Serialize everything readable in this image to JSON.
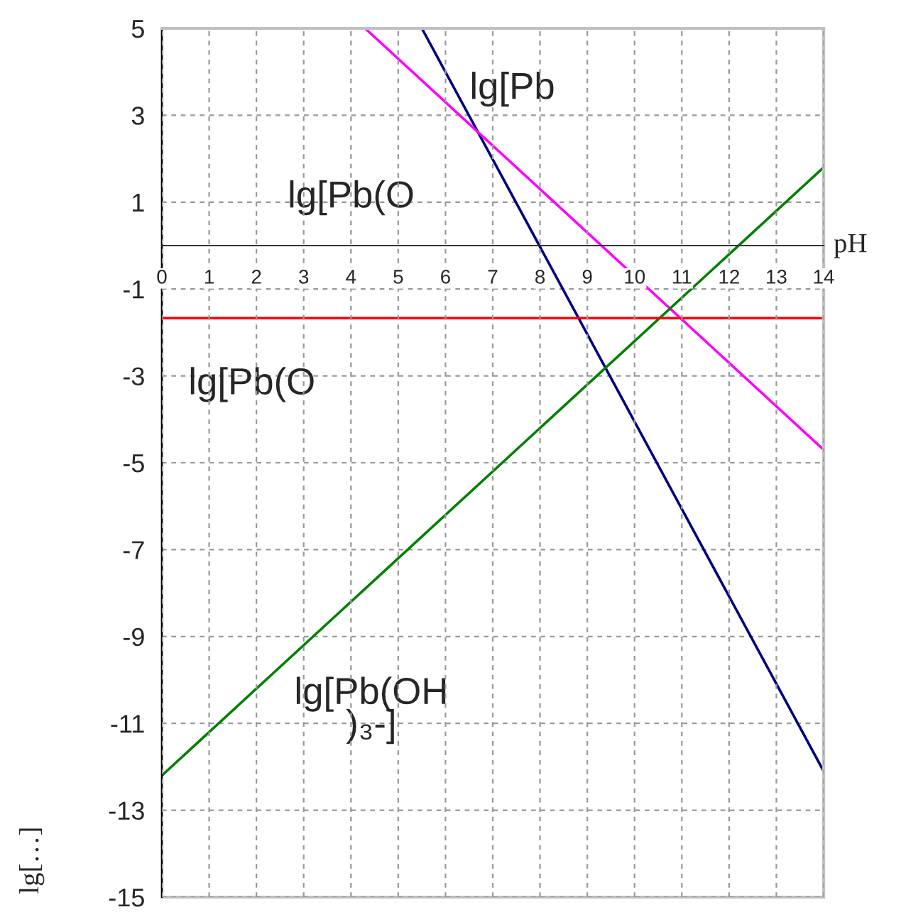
{
  "chart_data": {
    "type": "line",
    "xlabel": "pH",
    "ylabel": "lg[…]",
    "series": [
      {
        "color": "#000080",
        "x": [
          5.5,
          14
        ],
        "values": [
          5,
          -12.1
        ]
      },
      {
        "color": "#ff00ff",
        "x": [
          4.3,
          14
        ],
        "values": [
          5,
          -4.7
        ]
      },
      {
        "color": "#008000",
        "x": [
          0,
          14
        ],
        "values": [
          -12.2,
          1.8
        ]
      },
      {
        "color": "#ff0000",
        "x": [
          0,
          14
        ],
        "values": [
          -1.67,
          -1.67
        ]
      }
    ],
    "annotations": [
      "lg[Pb",
      "lg[Pb(O",
      "lg[Pb(O",
      "lg[Pb(OH\n)₃-]"
    ],
    "xlim": [
      0,
      14
    ],
    "ylim": [
      -15,
      5
    ],
    "xticks": [
      0,
      1,
      2,
      3,
      4,
      5,
      6,
      7,
      8,
      9,
      10,
      11,
      12,
      13,
      14
    ],
    "yticks": [
      -15,
      -13,
      -11,
      -9,
      -7,
      -5,
      -3,
      -1,
      1,
      3,
      5
    ],
    "grid": true,
    "line_style": "solid",
    "marker": "none"
  }
}
